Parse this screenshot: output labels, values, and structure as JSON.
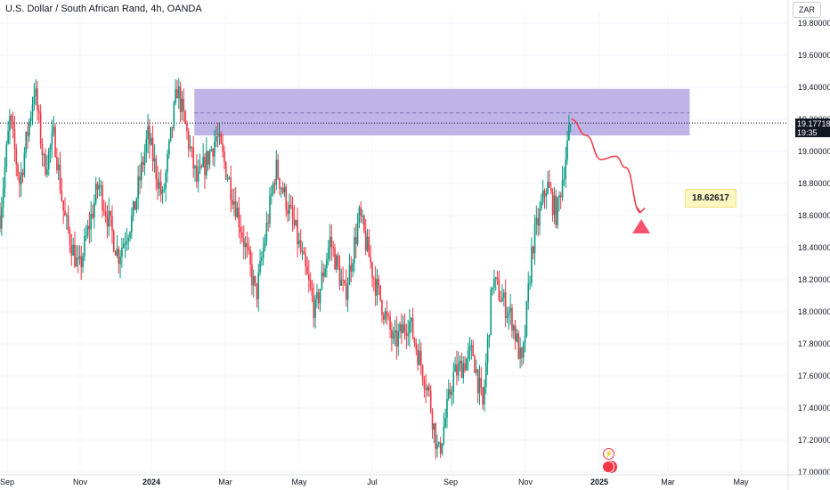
{
  "header": {
    "title": "U.S. Dollar / South African Rand, 4h, OANDA",
    "currency": "ZAR"
  },
  "price_tag": {
    "price": "19.17718",
    "countdown": "19:35"
  },
  "callout": {
    "value": "18.62617"
  },
  "icons": {
    "lightning": "lightning-icon",
    "us_flag": "us-flag-icon"
  },
  "colors": {
    "up": "#089981",
    "down": "#f23645",
    "zone": "#b3a7e3",
    "arrow": "#f23645",
    "target": "#f7526d"
  },
  "chart_data": {
    "type": "candlestick",
    "ylim": [
      17.0,
      19.9
    ],
    "y_ticks": [
      "17.00000",
      "17.20000",
      "17.40000",
      "17.60000",
      "17.80000",
      "18.00000",
      "18.20000",
      "18.40000",
      "18.60000",
      "18.80000",
      "19.00000",
      "19.20000",
      "19.40000",
      "19.60000",
      "19.80000"
    ],
    "x_ticks": [
      "Sep",
      "Nov",
      "2024",
      "Mar",
      "May",
      "Jul",
      "Sep",
      "Nov",
      "2025",
      "Mar",
      "May"
    ],
    "price_path": [
      {
        "t": 0,
        "p": 18.6
      },
      {
        "t": 2,
        "p": 19.2
      },
      {
        "t": 4,
        "p": 18.8
      },
      {
        "t": 7,
        "p": 19.4
      },
      {
        "t": 9,
        "p": 18.9
      },
      {
        "t": 11,
        "p": 19.1
      },
      {
        "t": 13,
        "p": 18.6
      },
      {
        "t": 16,
        "p": 18.25
      },
      {
        "t": 20,
        "p": 18.8
      },
      {
        "t": 24,
        "p": 18.35
      },
      {
        "t": 27,
        "p": 18.6
      },
      {
        "t": 30,
        "p": 19.1
      },
      {
        "t": 33,
        "p": 18.7
      },
      {
        "t": 36,
        "p": 19.4
      },
      {
        "t": 40,
        "p": 18.8
      },
      {
        "t": 44,
        "p": 19.1
      },
      {
        "t": 48,
        "p": 18.65
      },
      {
        "t": 52,
        "p": 18.1
      },
      {
        "t": 56,
        "p": 18.9
      },
      {
        "t": 60,
        "p": 18.5
      },
      {
        "t": 64,
        "p": 18.0
      },
      {
        "t": 67,
        "p": 18.45
      },
      {
        "t": 70,
        "p": 18.1
      },
      {
        "t": 73,
        "p": 18.6
      },
      {
        "t": 76,
        "p": 18.2
      },
      {
        "t": 80,
        "p": 17.8
      },
      {
        "t": 83,
        "p": 17.95
      },
      {
        "t": 87,
        "p": 17.5
      },
      {
        "t": 89,
        "p": 17.1
      },
      {
        "t": 92,
        "p": 17.6
      },
      {
        "t": 96,
        "p": 17.75
      },
      {
        "t": 98,
        "p": 17.4
      },
      {
        "t": 100,
        "p": 18.2
      },
      {
        "t": 104,
        "p": 17.95
      },
      {
        "t": 106,
        "p": 17.65
      },
      {
        "t": 108,
        "p": 18.4
      },
      {
        "t": 111,
        "p": 18.8
      },
      {
        "t": 113,
        "p": 18.6
      },
      {
        "t": 115,
        "p": 19.0
      },
      {
        "t": 116,
        "p": 19.2
      }
    ],
    "resistance_zone": {
      "from_t": 40,
      "to_t": 140,
      "low": 19.1,
      "high": 19.39
    },
    "current_price": 19.17718,
    "dashed_level": 19.24,
    "projection": [
      {
        "t": 116,
        "p": 19.2
      },
      {
        "t": 119,
        "p": 19.1
      },
      {
        "t": 122,
        "p": 18.95
      },
      {
        "t": 125,
        "p": 18.97
      },
      {
        "t": 127,
        "p": 18.9
      },
      {
        "t": 130,
        "p": 18.62
      }
    ],
    "target": 18.62617,
    "target_marker_price": 18.5
  }
}
